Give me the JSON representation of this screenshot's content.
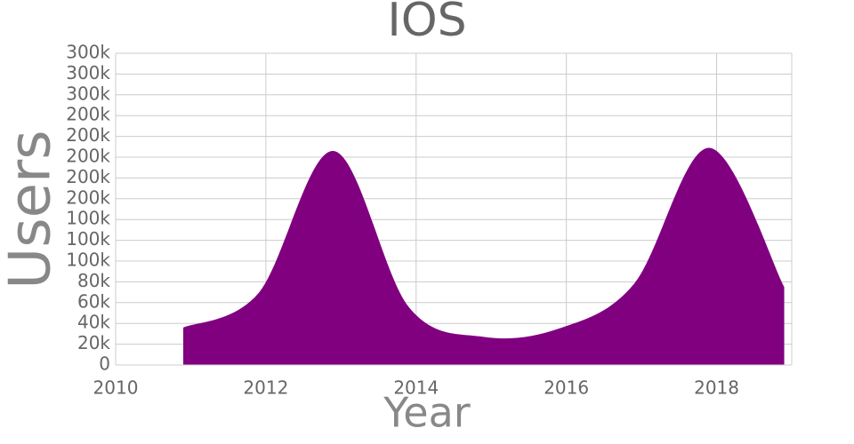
{
  "chart_data": {
    "type": "area",
    "title": "IOS",
    "x_label": "Year",
    "y_label": "Users",
    "x": [
      2010.9,
      2011.9,
      2012.9,
      2013.9,
      2014.9,
      2015.9,
      2016.9,
      2017.9,
      2018.9
    ],
    "series": [
      {
        "name": "IOS",
        "color": "#800080",
        "values": [
          36000,
          69000,
          206000,
          56000,
          27000,
          35000,
          78000,
          209000,
          75000
        ]
      }
    ],
    "xlim": [
      2010,
      2019
    ],
    "xticks": [
      2010,
      2012,
      2014,
      2016,
      2018
    ],
    "ylim": [
      0,
      300000
    ],
    "yticks": [
      0,
      {
        "value": 20000,
        "label": "20k"
      },
      {
        "value": 40000,
        "label": "40k"
      },
      {
        "value": 60000,
        "label": "60k"
      },
      {
        "value": 80000,
        "label": "80k"
      },
      {
        "value": 100000,
        "label": "100k"
      },
      {
        "value": 120000,
        "label": "100k"
      },
      {
        "value": 140000,
        "label": "100k"
      },
      {
        "value": 160000,
        "label": "200k"
      },
      {
        "value": 180000,
        "label": "200k"
      },
      {
        "value": 200000,
        "label": "200k"
      },
      {
        "value": 220000,
        "label": "200k"
      },
      {
        "value": 240000,
        "label": "200k"
      },
      {
        "value": 260000,
        "label": "300k"
      },
      {
        "value": 280000,
        "label": "300k"
      },
      {
        "value": 300000,
        "label": "300k"
      }
    ],
    "grid": true
  }
}
